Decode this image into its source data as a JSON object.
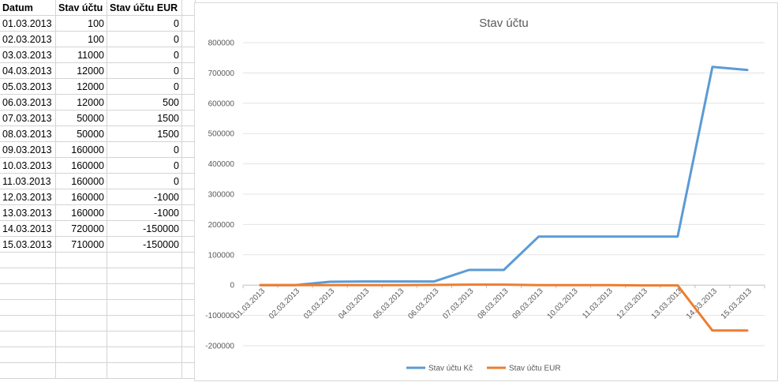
{
  "table": {
    "headers": [
      "Datum",
      "Stav účtu",
      "Stav účtu EUR"
    ],
    "rows": [
      [
        "01.03.2013",
        "100",
        "0"
      ],
      [
        "02.03.2013",
        "100",
        "0"
      ],
      [
        "03.03.2013",
        "11000",
        "0"
      ],
      [
        "04.03.2013",
        "12000",
        "0"
      ],
      [
        "05.03.2013",
        "12000",
        "0"
      ],
      [
        "06.03.2013",
        "12000",
        "500"
      ],
      [
        "07.03.2013",
        "50000",
        "1500"
      ],
      [
        "08.03.2013",
        "50000",
        "1500"
      ],
      [
        "09.03.2013",
        "160000",
        "0"
      ],
      [
        "10.03.2013",
        "160000",
        "0"
      ],
      [
        "11.03.2013",
        "160000",
        "0"
      ],
      [
        "12.03.2013",
        "160000",
        "-1000"
      ],
      [
        "13.03.2013",
        "160000",
        "-1000"
      ],
      [
        "14.03.2013",
        "720000",
        "-150000"
      ],
      [
        "15.03.2013",
        "710000",
        "-150000"
      ]
    ]
  },
  "chart_data": {
    "type": "line",
    "title": "Stav účtu",
    "xlabel": "",
    "ylabel": "",
    "categories": [
      "01.03.2013",
      "02.03.2013",
      "03.03.2013",
      "04.03.2013",
      "05.03.2013",
      "06.03.2013",
      "07.03.2013",
      "08.03.2013",
      "09.03.2013",
      "10.03.2013",
      "11.03.2013",
      "12.03.2013",
      "13.03.2013",
      "14.03.2013",
      "15.03.2013"
    ],
    "series": [
      {
        "name": "Stav účtu Kč",
        "color": "#5b9bd5",
        "values": [
          100,
          100,
          11000,
          12000,
          12000,
          12000,
          50000,
          50000,
          160000,
          160000,
          160000,
          160000,
          160000,
          720000,
          710000
        ]
      },
      {
        "name": "Stav účtu EUR",
        "color": "#ed7d31",
        "values": [
          0,
          0,
          0,
          0,
          0,
          500,
          1500,
          1500,
          0,
          0,
          0,
          -1000,
          -1000,
          -150000,
          -150000
        ]
      }
    ],
    "ylim": [
      -200000,
      800000
    ],
    "yticks": [
      -200000,
      -100000,
      0,
      100000,
      200000,
      300000,
      400000,
      500000,
      600000,
      700000,
      800000
    ],
    "grid": true,
    "legend": "bottom"
  }
}
